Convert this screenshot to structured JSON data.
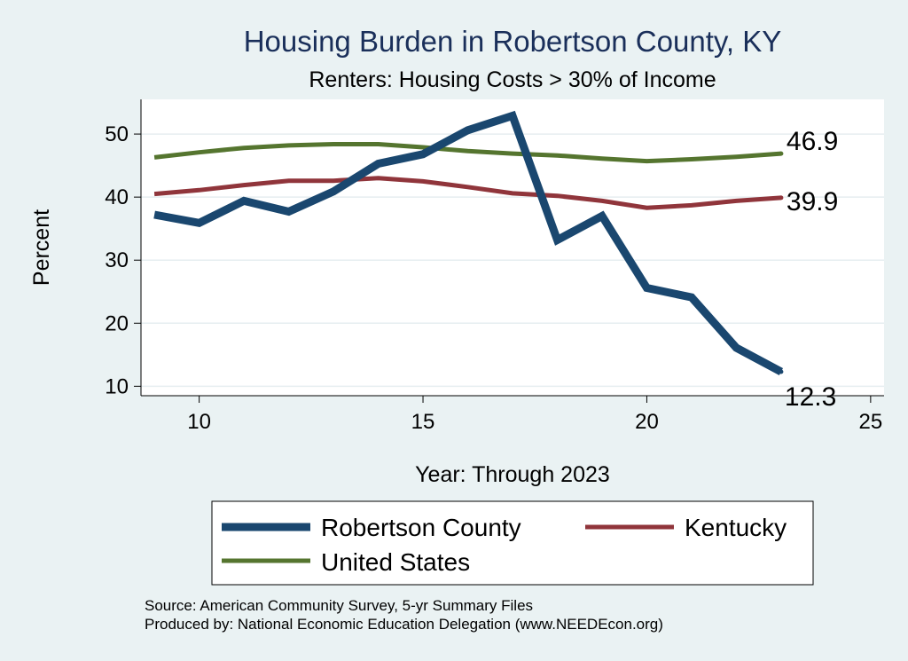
{
  "chart_data": {
    "type": "line",
    "title": "Housing Burden in Robertson County, KY",
    "subtitle": "Renters: Housing Costs > 30% of Income",
    "xlabel": "Year: Through 2023",
    "ylabel": "Percent",
    "xlim": [
      8.7,
      25.3
    ],
    "ylim": [
      8.5,
      55.5
    ],
    "xticks": [
      10,
      15,
      20,
      25
    ],
    "yticks": [
      10,
      20,
      30,
      40,
      50
    ],
    "grid": true,
    "legend_position": "bottom",
    "x": [
      9,
      10,
      11,
      12,
      13,
      14,
      15,
      16,
      17,
      18,
      19,
      20,
      21,
      22,
      23
    ],
    "series": [
      {
        "name": "Robertson County",
        "color": "#1a476f",
        "values": [
          37.2,
          35.9,
          39.4,
          37.7,
          40.9,
          45.3,
          46.8,
          50.6,
          52.9,
          33.2,
          37.0,
          25.6,
          24.1,
          16.1,
          12.3
        ],
        "end_label": "12.3"
      },
      {
        "name": "Kentucky",
        "color": "#90353b",
        "values": [
          40.5,
          41.1,
          41.9,
          42.6,
          42.6,
          43.0,
          42.5,
          41.6,
          40.6,
          40.2,
          39.4,
          38.3,
          38.7,
          39.4,
          39.9
        ],
        "end_label": "39.9"
      },
      {
        "name": "United States",
        "color": "#55752f",
        "values": [
          46.3,
          47.1,
          47.8,
          48.2,
          48.4,
          48.4,
          47.9,
          47.3,
          46.9,
          46.6,
          46.1,
          45.7,
          46.0,
          46.4,
          46.9
        ],
        "end_label": "46.9"
      }
    ]
  },
  "notes": {
    "source": "Source: American Community Survey, 5-yr Summary Files",
    "produced": "Produced by: National Economic Education Delegation (www.NEEDEcon.org)"
  }
}
